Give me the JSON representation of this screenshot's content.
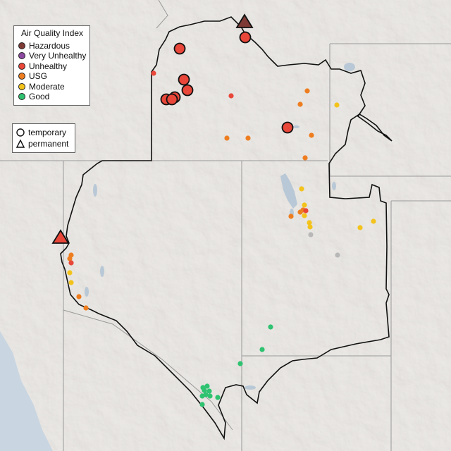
{
  "legend": {
    "title": "Air Quality Index",
    "categories": [
      {
        "label": "Hazardous",
        "color": "#7e3b36"
      },
      {
        "label": "Very Unhealthy",
        "color": "#8d4aa0"
      },
      {
        "label": "Unhealthy",
        "color": "#e8473a"
      },
      {
        "label": "USG",
        "color": "#ee7d1f"
      },
      {
        "label": "Moderate",
        "color": "#f3c31c"
      },
      {
        "label": "Good",
        "color": "#2fc271"
      }
    ]
  },
  "type_legend": {
    "temporary": "temporary",
    "permanent": "permanent"
  },
  "colors": {
    "background": "#e6e3df",
    "state_border": "#9a9a9a",
    "region_border": "#111111",
    "ocean": "#c9d6e2",
    "lake": "#b9c8d6",
    "no_data": "#b8b8b8"
  }
}
